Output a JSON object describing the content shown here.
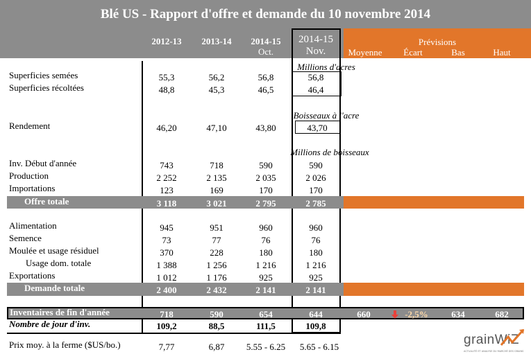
{
  "title": "Blé US - Rapport d'offre et demande du 10 novembre 2014",
  "columns": {
    "c1": {
      "line1": "2012-13",
      "line2": ""
    },
    "c2": {
      "line1": "2013-14",
      "line2": ""
    },
    "c3": {
      "line1": "2014-15",
      "line2": "Oct."
    },
    "c4": {
      "line1": "2014-15",
      "line2": "Nov."
    }
  },
  "forecast": {
    "title": "Prévisions",
    "moyenne": "Moyenne",
    "ecart": "Écart",
    "bas": "Bas",
    "haut": "Haut"
  },
  "units": {
    "acres": "Millions d'acres",
    "bushels_per_acre": "Boisseaux à l'acre",
    "bushels": "Millions de boisseaux"
  },
  "rows": {
    "superficies_semees": {
      "label": "Superficies semées",
      "v": [
        "55,3",
        "56,2",
        "56,8",
        "56,8"
      ]
    },
    "superficies_recoltees": {
      "label": "Superficies récoltées",
      "v": [
        "48,8",
        "45,3",
        "46,5",
        "46,4"
      ]
    },
    "rendement": {
      "label": "Rendement",
      "v": [
        "46,20",
        "47,10",
        "43,80",
        "43,70"
      ]
    },
    "inv_debut": {
      "label": "Inv. Début d'année",
      "v": [
        "743",
        "718",
        "590",
        "590"
      ]
    },
    "production": {
      "label": "Production",
      "v": [
        "2 252",
        "2 135",
        "2 035",
        "2 026"
      ]
    },
    "importations": {
      "label": "Importations",
      "v": [
        "123",
        "169",
        "170",
        "170"
      ]
    },
    "offre_totale": {
      "label": "Offre totale",
      "v": [
        "3 118",
        "3 021",
        "2 795",
        "2 785"
      ]
    },
    "alimentation": {
      "label": "Alimentation",
      "v": [
        "945",
        "951",
        "960",
        "960"
      ]
    },
    "semence": {
      "label": "Semence",
      "v": [
        "73",
        "77",
        "76",
        "76"
      ]
    },
    "moulee": {
      "label": "Moulée et usage résiduel",
      "v": [
        "370",
        "228",
        "180",
        "180"
      ]
    },
    "usage_dom": {
      "label": "Usage dom. totale",
      "v": [
        "1 388",
        "1 256",
        "1 216",
        "1 216"
      ]
    },
    "exportations": {
      "label": "Exportations",
      "v": [
        "1 012",
        "1 176",
        "925",
        "925"
      ]
    },
    "demande_totale": {
      "label": "Demande totale",
      "v": [
        "2 400",
        "2 432",
        "2 141",
        "2 141"
      ]
    },
    "inventaires_fin": {
      "label": "Inventaires de fin d'année",
      "v": [
        "718",
        "590",
        "654",
        "644"
      ],
      "moyenne": "660",
      "ecart": "-2,5%",
      "bas": "634",
      "haut": "682"
    },
    "nombre_jour": {
      "label": "Nombre de jour d'inv.",
      "v": [
        "109,2",
        "88,5",
        "111,5",
        "109,8"
      ]
    },
    "prix": {
      "label": "Prix moy. à la ferme ($US/bo.)",
      "v": [
        "7,77",
        "6,87",
        "5.55 - 6.25",
        "5.65 - 6.15"
      ]
    }
  },
  "logo": {
    "text_a": "grain",
    "text_b": "WiZ",
    "tagline": "ACTUALITÉ ET ANALYSE DU MARCHÉ DES GRAINS"
  },
  "colors": {
    "grey": "#8c8c8c",
    "orange": "#e2762a",
    "arrow": "#e8423a",
    "ecart_text": "#ffd9a8"
  }
}
